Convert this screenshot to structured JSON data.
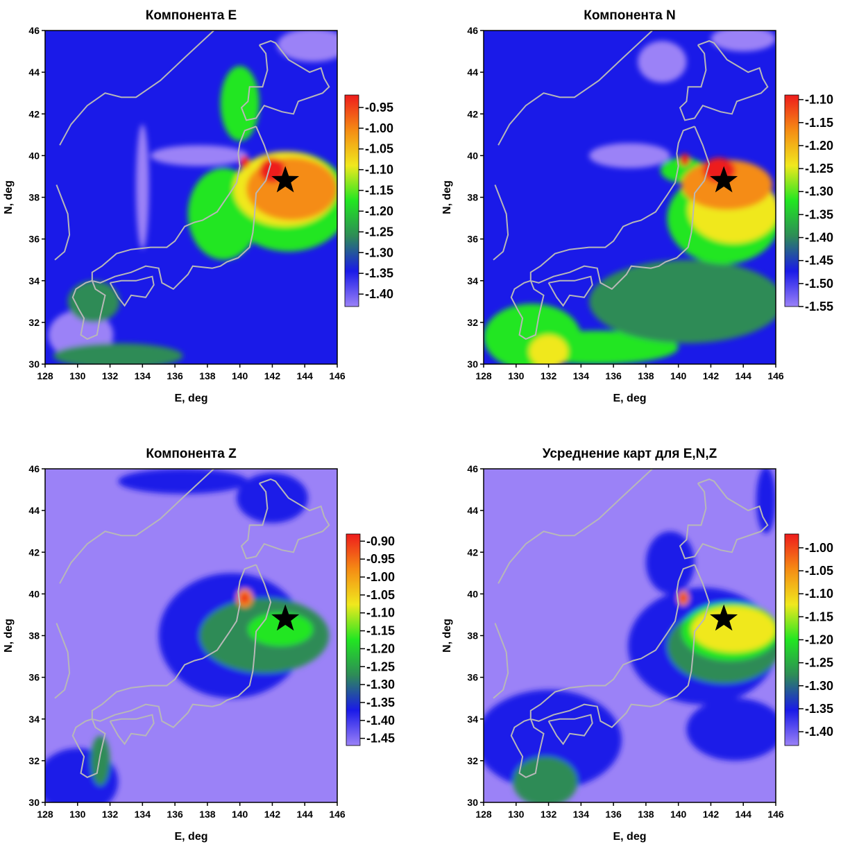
{
  "colors": {
    "purple": "#9b82f7",
    "blue": "#1a1ae8",
    "darkgreen": "#2e8b57",
    "green": "#22e622",
    "yellow": "#f0e81e",
    "orange": "#f58c14",
    "red": "#ee1c1c",
    "coastline": "#b8b8b8",
    "star": "#000000"
  },
  "chart_data": [
    {
      "type": "heatmap",
      "title": "Компонента E",
      "xlabel": "E, deg",
      "ylabel": "N, deg",
      "xlim": [
        128,
        146
      ],
      "ylim": [
        30,
        46
      ],
      "xticks": [
        "128",
        "130",
        "132",
        "134",
        "136",
        "138",
        "140",
        "142",
        "144",
        "146"
      ],
      "yticks": [
        "30",
        "32",
        "34",
        "36",
        "38",
        "40",
        "42",
        "44",
        "46"
      ],
      "colorbar": [
        "-0.95",
        "-1.00",
        "-1.05",
        "-1.10",
        "-1.15",
        "-1.20",
        "-1.25",
        "-1.30",
        "-1.35",
        "-1.40"
      ],
      "colorbar_range": [
        -1.43,
        -0.92
      ],
      "background": "blue",
      "epicenter": {
        "lon": 142.8,
        "lat": 38.8
      }
    },
    {
      "type": "heatmap",
      "title": "Компонента N",
      "xlabel": "E, deg",
      "ylabel": "N, deg",
      "xlim": [
        128,
        146
      ],
      "ylim": [
        30,
        46
      ],
      "xticks": [
        "128",
        "130",
        "132",
        "134",
        "136",
        "138",
        "140",
        "142",
        "144",
        "146"
      ],
      "yticks": [
        "30",
        "32",
        "34",
        "36",
        "38",
        "40",
        "42",
        "44",
        "46"
      ],
      "colorbar": [
        "-1.10",
        "-1.15",
        "-1.20",
        "-1.25",
        "-1.30",
        "-1.35",
        "-1.40",
        "-1.45",
        "-1.50",
        "-1.55"
      ],
      "colorbar_range": [
        -1.55,
        -1.09
      ],
      "background": "blue",
      "epicenter": {
        "lon": 142.8,
        "lat": 38.8
      }
    },
    {
      "type": "heatmap",
      "title": "Компонента Z",
      "xlabel": "E, deg",
      "ylabel": "N, deg",
      "xlim": [
        128,
        146
      ],
      "ylim": [
        30,
        46
      ],
      "xticks": [
        "128",
        "130",
        "132",
        "134",
        "136",
        "138",
        "140",
        "142",
        "144",
        "146"
      ],
      "yticks": [
        "30",
        "32",
        "34",
        "36",
        "38",
        "40",
        "42",
        "44",
        "46"
      ],
      "colorbar": [
        "-0.90",
        "-0.95",
        "-1.00",
        "-1.05",
        "-1.10",
        "-1.15",
        "-1.20",
        "-1.25",
        "-1.30",
        "-1.35",
        "-1.40",
        "-1.45"
      ],
      "colorbar_range": [
        -1.47,
        -0.88
      ],
      "background": "purple",
      "epicenter": {
        "lon": 142.8,
        "lat": 38.8
      }
    },
    {
      "type": "heatmap",
      "title": "Усреднение карт для E,N,Z",
      "xlabel": "E, deg",
      "ylabel": "N, deg",
      "xlim": [
        128,
        146
      ],
      "ylim": [
        30,
        46
      ],
      "xticks": [
        "128",
        "130",
        "132",
        "134",
        "136",
        "138",
        "140",
        "142",
        "144",
        "146"
      ],
      "yticks": [
        "30",
        "32",
        "34",
        "36",
        "38",
        "40",
        "42",
        "44",
        "46"
      ],
      "colorbar": [
        "-1.00",
        "-1.05",
        "-1.10",
        "-1.15",
        "-1.20",
        "-1.25",
        "-1.30",
        "-1.35",
        "-1.40"
      ],
      "colorbar_range": [
        -1.43,
        -0.97
      ],
      "background": "purple",
      "epicenter": {
        "lon": 142.8,
        "lat": 38.8
      }
    }
  ]
}
